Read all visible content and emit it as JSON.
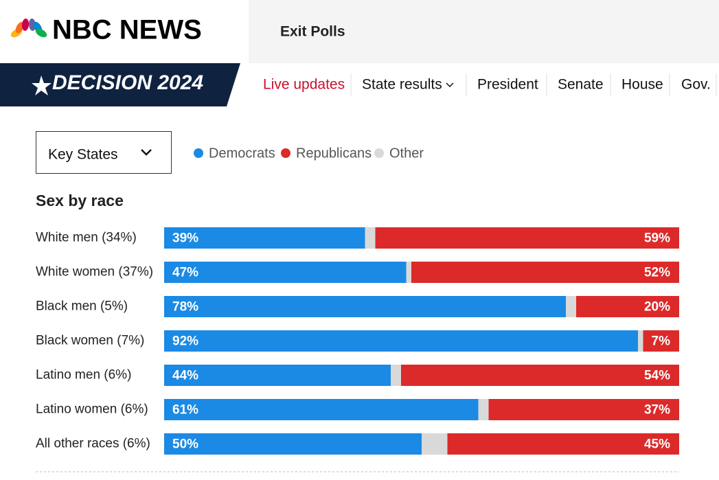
{
  "header": {
    "logo": "NBC NEWS",
    "section": "Exit Polls"
  },
  "nav": {
    "brand": "DECISION 2024",
    "items": [
      "Live updates",
      "State results",
      "President",
      "Senate",
      "House",
      "Gov."
    ]
  },
  "filter": {
    "selected": "Key States"
  },
  "chart_data": {
    "type": "stacked_bar",
    "title": "Sex by race",
    "categories": [
      "White men (34%)",
      "White women (37%)",
      "Black men (5%)",
      "Black women (7%)",
      "Latino men (6%)",
      "Latino women (6%)",
      "All other races (6%)"
    ],
    "xlim": [
      0,
      100
    ],
    "series": [
      {
        "name": "Democrats",
        "color": "#1a8ae5",
        "values": [
          39,
          47,
          78,
          92,
          44,
          61,
          50
        ],
        "value_labels": [
          "39%",
          "47%",
          "78%",
          "92%",
          "44%",
          "61%",
          "50%"
        ]
      },
      {
        "name": "Republicans",
        "color": "#dc2a2a",
        "values": [
          59,
          52,
          20,
          7,
          54,
          37,
          45
        ],
        "value_labels": [
          "59%",
          "52%",
          "20%",
          "7%",
          "54%",
          "37%",
          "45%"
        ]
      },
      {
        "name": "Other",
        "color": "#d9d9d9",
        "values": [
          2,
          1,
          2,
          1,
          2,
          2,
          5
        ]
      }
    ]
  }
}
